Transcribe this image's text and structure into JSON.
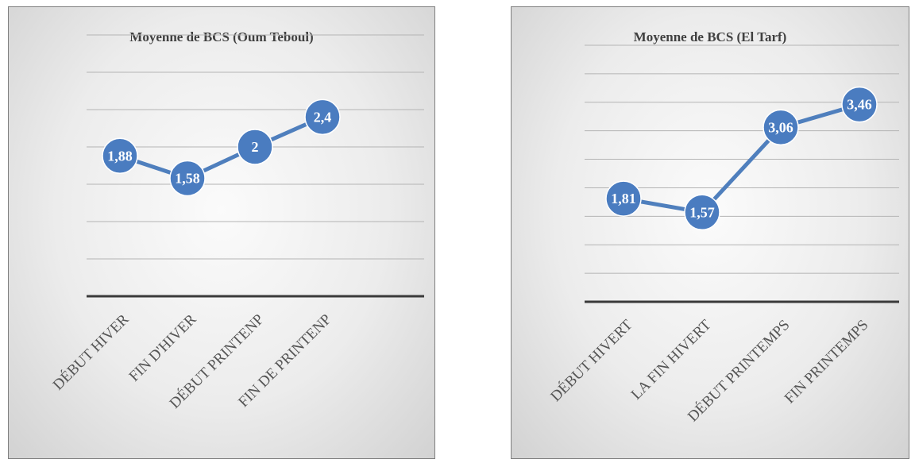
{
  "chart_data": [
    {
      "type": "line",
      "title": "Moyenne de BCS (Oum Teboul)",
      "categories": [
        "DÉBUT HIVER",
        "FIN D'HIVER",
        "DÉBUT PRINTENP",
        "FIN DE PRINTENP"
      ],
      "series": [
        {
          "values": [
            1.88,
            1.58,
            2,
            2.4
          ],
          "labels": [
            "1,88",
            "1,58",
            "2",
            "2,4"
          ]
        }
      ],
      "ylim": [
        0,
        3.5
      ],
      "grid": true,
      "color": "#4f7fbd"
    },
    {
      "type": "line",
      "title": "Moyenne de BCS (El Tarf)",
      "categories": [
        "DÉBUT HIVERT",
        "LA FIN HIVERT",
        "DÉBUT PRINTEMPS",
        "FIN PRINTEMPS"
      ],
      "series": [
        {
          "values": [
            1.81,
            1.57,
            3.06,
            3.46
          ],
          "labels": [
            "1,81",
            "1,57",
            "3,06",
            "3,46"
          ]
        }
      ],
      "ylim": [
        0,
        4.5
      ],
      "grid": true,
      "color": "#4f7fbd"
    }
  ]
}
